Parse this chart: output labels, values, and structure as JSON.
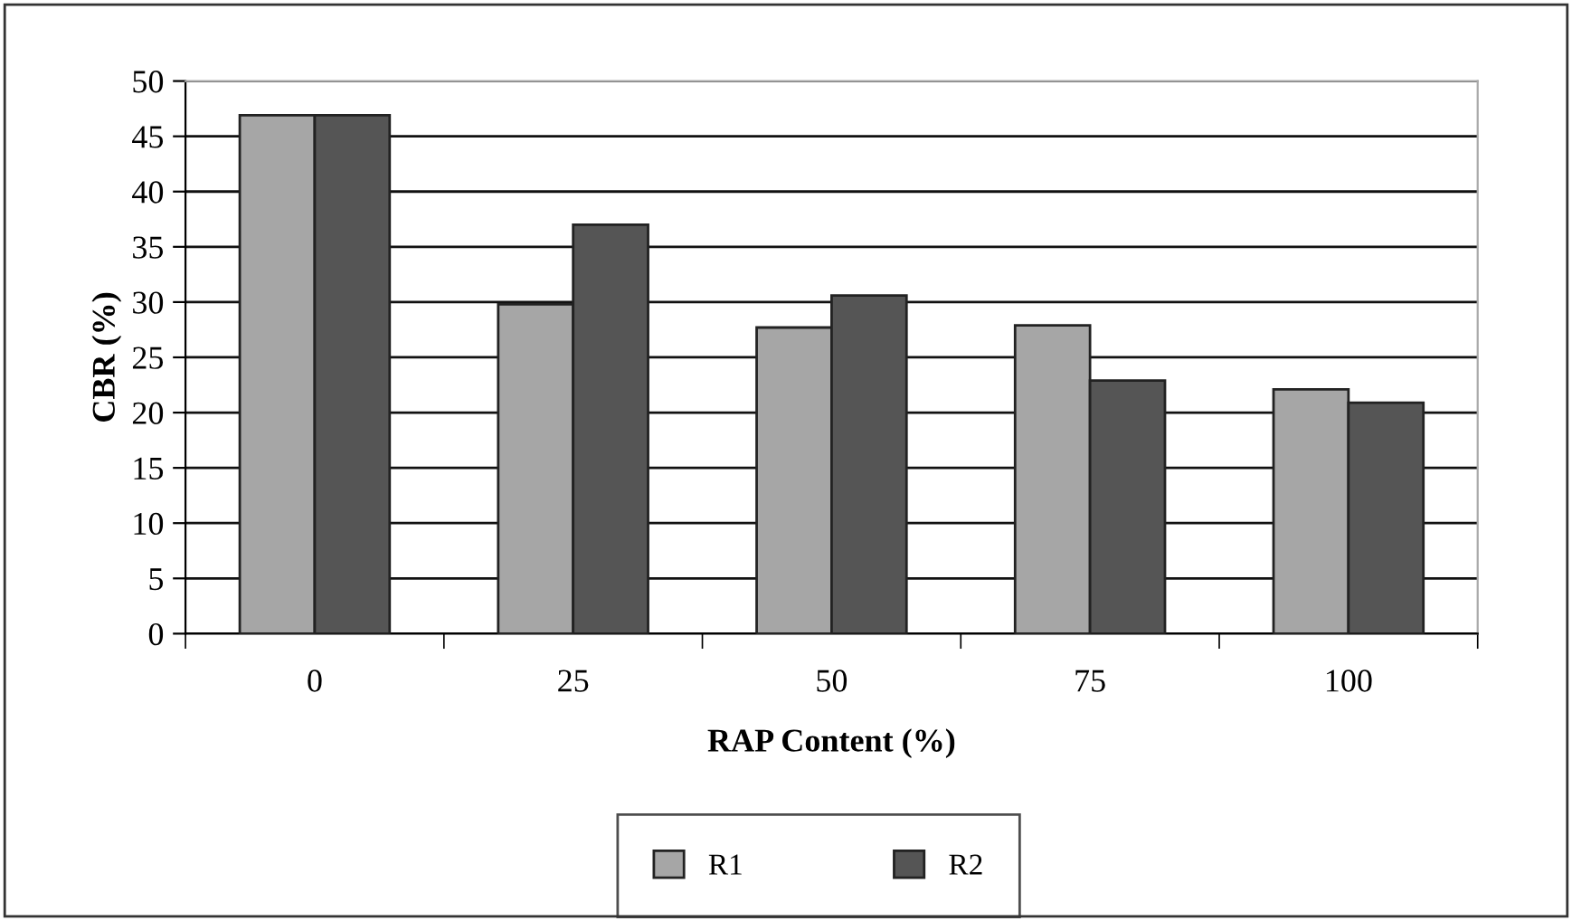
{
  "chart_data": {
    "type": "bar",
    "xlabel": "RAP Content (%)",
    "ylabel": "CBR (%)",
    "categories": [
      "0",
      "25",
      "50",
      "75",
      "100"
    ],
    "series": [
      {
        "name": "R1",
        "color": "#a6a6a6",
        "values": [
          46.9,
          29.8,
          27.7,
          27.9,
          22.1
        ]
      },
      {
        "name": "R2",
        "color": "#555555",
        "values": [
          46.9,
          37.0,
          30.6,
          22.9,
          20.9
        ]
      }
    ],
    "ylim": [
      0,
      50
    ],
    "yticks": [
      0,
      5,
      10,
      15,
      20,
      25,
      30,
      35,
      40,
      45,
      50
    ],
    "grid": "y",
    "legend": "bottom"
  }
}
